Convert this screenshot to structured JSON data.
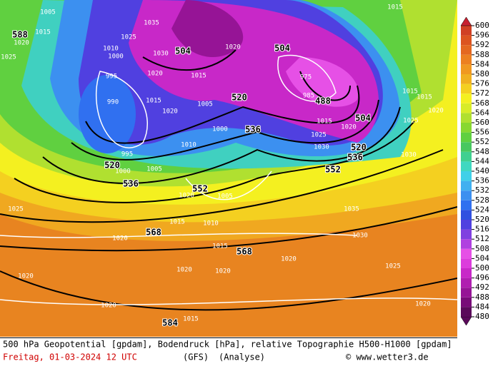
{
  "map": {
    "geopotential_labels": [
      "588",
      "504",
      "520",
      "536",
      "504",
      "488",
      "504",
      "520",
      "536",
      "552",
      "520",
      "536",
      "552",
      "568",
      "568",
      "584"
    ],
    "pressure_labels": [
      "1005",
      "1015",
      "1020",
      "1025",
      "995",
      "990",
      "995",
      "1000",
      "1005",
      "1010",
      "1020",
      "1005",
      "1025",
      "1015",
      "1010",
      "1020",
      "1015",
      "1030",
      "1035",
      "1020",
      "1020",
      "1020",
      "1020",
      "1025",
      "1020",
      "1015",
      "1020",
      "1030",
      "1025",
      "1020",
      "1015",
      "1015",
      "1015",
      "1015",
      "1025",
      "1020",
      "1030",
      "1020",
      "1015",
      "1005",
      "1000",
      "1030",
      "1020",
      "1015",
      "1020",
      "1025",
      "1010",
      "1000",
      "975",
      "985",
      "1035"
    ]
  },
  "colorbar": {
    "levels": [
      480,
      484,
      488,
      492,
      496,
      500,
      504,
      508,
      512,
      516,
      520,
      524,
      528,
      532,
      536,
      540,
      544,
      548,
      552,
      556,
      560,
      564,
      568,
      572,
      576,
      580,
      584,
      588,
      592,
      596,
      600
    ],
    "colors": [
      "#5a0a5a",
      "#780c78",
      "#961496",
      "#b01eb0",
      "#c828c8",
      "#dc3cdc",
      "#e650e6",
      "#b040e0",
      "#8040e0",
      "#5040e0",
      "#3050e0",
      "#3070f0",
      "#3c90f0",
      "#40b0f0",
      "#40d0e8",
      "#40d8c0",
      "#40d090",
      "#48c860",
      "#60d040",
      "#88d830",
      "#b0e030",
      "#d8ec28",
      "#f4f020",
      "#f4d020",
      "#f0b020",
      "#f09820",
      "#ec8020",
      "#e46820",
      "#dc5420",
      "#d04024",
      "#c82030"
    ]
  },
  "footer": {
    "description": "500 hPa Geopotential [gpdam], Bodendruck [hPa], relative Topographie H500-H1000 [gpdam]",
    "date": "Freitag, 01-03-2024  12 UTC",
    "model": "(GFS)",
    "run": "(Analyse)",
    "copyright": "© www.wetter3.de"
  }
}
